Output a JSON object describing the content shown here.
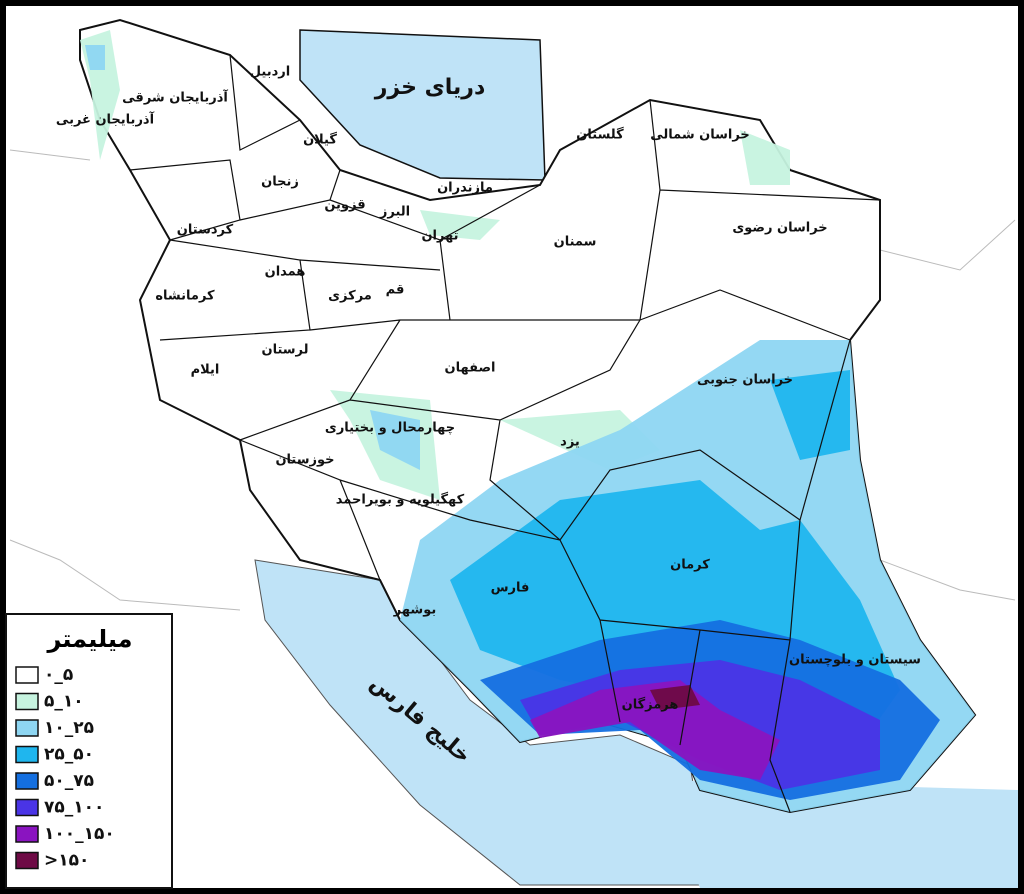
{
  "seas": [
    "دریای خزر",
    "خلیج فارس"
  ],
  "provinces": [
    "اردبیل",
    "آذربایجان شرقی",
    "آذربایجان غربی",
    "گیلان",
    "زنجان",
    "مازندران",
    "گلستان",
    "خراسان شمالی",
    "قزوین",
    "البرز",
    "تهران",
    "سمنان",
    "خراسان رضوی",
    "کردستان",
    "همدان",
    "کرمانشاه",
    "قم",
    "مرکزی",
    "لرستان",
    "ایلام",
    "اصفهان",
    "خراسان جنوبی",
    "چهارمحال و بختیاری",
    "یزد",
    "خوزستان",
    "کهگیلویه و بویراحمد",
    "فارس",
    "کرمان",
    "بوشهر",
    "هرمزگان",
    "سیستان و بلوچستان"
  ],
  "legend": {
    "title": "میلیمتر",
    "items": [
      {
        "label": "۰_۵",
        "color": "#ffffff"
      },
      {
        "label": "۵_۱۰",
        "color": "#c6f3df"
      },
      {
        "label": "۱۰_۲۵",
        "color": "#8ed6f2"
      },
      {
        "label": "۲۵_۵۰",
        "color": "#1fb6ee"
      },
      {
        "label": "۵۰_۷۵",
        "color": "#146fe0"
      },
      {
        "label": "۷۵_۱۰۰",
        "color": "#4a34e6"
      },
      {
        "label": "۱۰۰_۱۵۰",
        "color": "#8a14c0"
      },
      {
        "label": ">۱۵۰",
        "color": "#6e0a45"
      }
    ]
  }
}
